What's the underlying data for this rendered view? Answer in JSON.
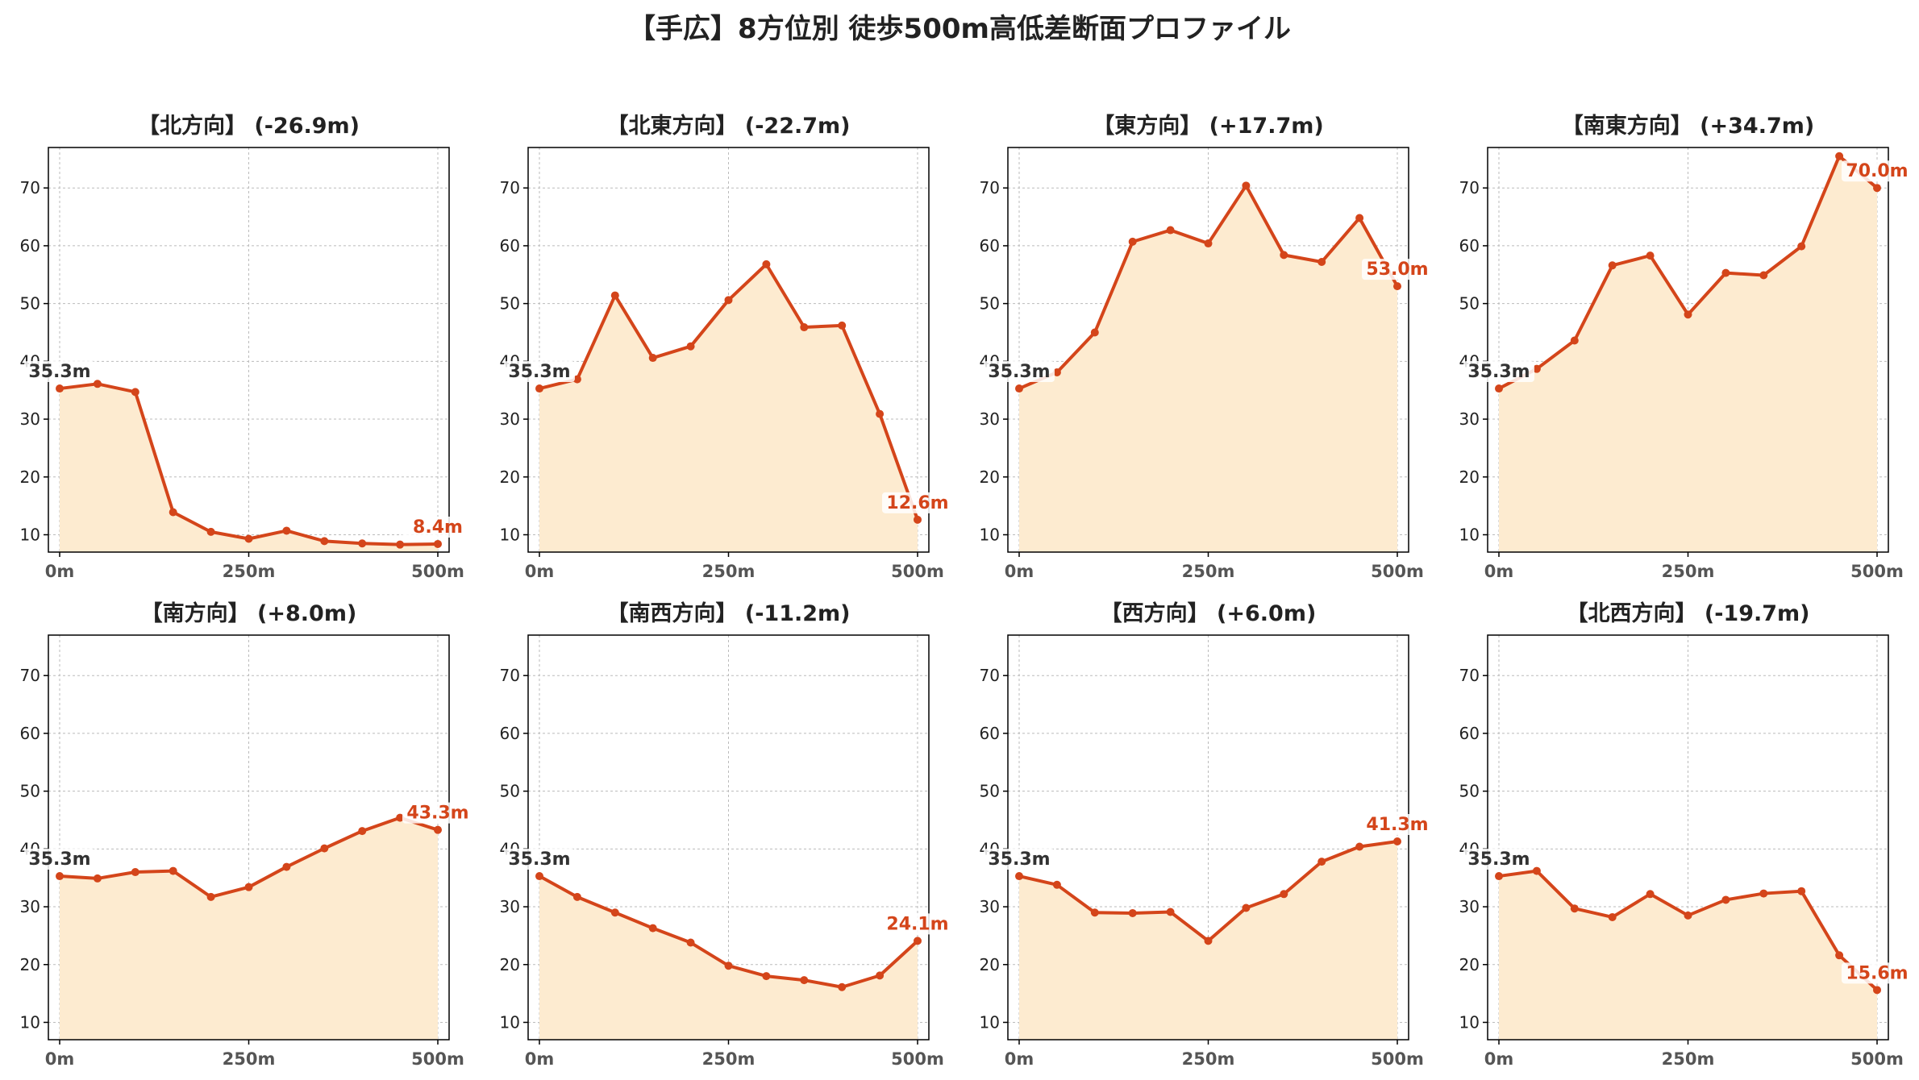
{
  "title": "【手広】8方位別 徒歩500m高低差断面プロファイル",
  "colors": {
    "line": "#D4451A",
    "fill": "#FDEBD0",
    "grid": "#BBBBBB",
    "start_label": "#333333",
    "end_label": "#D4451A"
  },
  "chart_data": [
    {
      "type": "area",
      "title": "【北方向】 (-26.9m)",
      "x": [
        0,
        50,
        100,
        150,
        200,
        250,
        300,
        350,
        400,
        450,
        500
      ],
      "x_ticks": [
        "0m",
        "250m",
        "500m"
      ],
      "y_ticks": [
        10,
        20,
        30,
        40,
        50,
        60,
        70
      ],
      "ylim": [
        7,
        77
      ],
      "values": [
        35.3,
        36.1,
        34.7,
        13.9,
        10.5,
        9.3,
        10.7,
        8.9,
        8.5,
        8.3,
        8.4
      ],
      "start_label": "35.3m",
      "end_label": "8.4m",
      "grid": true
    },
    {
      "type": "area",
      "title": "【北東方向】 (-22.7m)",
      "x": [
        0,
        50,
        100,
        150,
        200,
        250,
        300,
        350,
        400,
        450,
        500
      ],
      "x_ticks": [
        "0m",
        "250m",
        "500m"
      ],
      "y_ticks": [
        10,
        20,
        30,
        40,
        50,
        60,
        70
      ],
      "ylim": [
        7,
        77
      ],
      "values": [
        35.3,
        36.9,
        51.4,
        40.6,
        42.6,
        50.6,
        56.8,
        45.9,
        46.2,
        30.9,
        12.6
      ],
      "start_label": "35.3m",
      "end_label": "12.6m",
      "grid": true
    },
    {
      "type": "area",
      "title": "【東方向】 (+17.7m)",
      "x": [
        0,
        50,
        100,
        150,
        200,
        250,
        300,
        350,
        400,
        450,
        500
      ],
      "x_ticks": [
        "0m",
        "250m",
        "500m"
      ],
      "y_ticks": [
        10,
        20,
        30,
        40,
        50,
        60,
        70
      ],
      "ylim": [
        7,
        77
      ],
      "values": [
        35.3,
        38.1,
        45.0,
        60.7,
        62.7,
        60.4,
        70.4,
        58.4,
        57.2,
        64.8,
        53.0
      ],
      "start_label": "35.3m",
      "end_label": "53.0m",
      "grid": true
    },
    {
      "type": "area",
      "title": "【南東方向】 (+34.7m)",
      "x": [
        0,
        50,
        100,
        150,
        200,
        250,
        300,
        350,
        400,
        450,
        500
      ],
      "x_ticks": [
        "0m",
        "250m",
        "500m"
      ],
      "y_ticks": [
        10,
        20,
        30,
        40,
        50,
        60,
        70
      ],
      "ylim": [
        7,
        77
      ],
      "values": [
        35.3,
        38.7,
        43.6,
        56.6,
        58.3,
        48.1,
        55.3,
        54.9,
        59.9,
        75.5,
        70.0
      ],
      "start_label": "35.3m",
      "end_label": "70.0m",
      "grid": true
    },
    {
      "type": "area",
      "title": "【南方向】 (+8.0m)",
      "x": [
        0,
        50,
        100,
        150,
        200,
        250,
        300,
        350,
        400,
        450,
        500
      ],
      "x_ticks": [
        "0m",
        "250m",
        "500m"
      ],
      "y_ticks": [
        10,
        20,
        30,
        40,
        50,
        60,
        70
      ],
      "ylim": [
        7,
        77
      ],
      "values": [
        35.3,
        34.9,
        36.0,
        36.2,
        31.7,
        33.4,
        36.9,
        40.1,
        43.1,
        45.4,
        43.3
      ],
      "start_label": "35.3m",
      "end_label": "43.3m",
      "grid": true
    },
    {
      "type": "area",
      "title": "【南西方向】 (-11.2m)",
      "x": [
        0,
        50,
        100,
        150,
        200,
        250,
        300,
        350,
        400,
        450,
        500
      ],
      "x_ticks": [
        "0m",
        "250m",
        "500m"
      ],
      "y_ticks": [
        10,
        20,
        30,
        40,
        50,
        60,
        70
      ],
      "ylim": [
        7,
        77
      ],
      "values": [
        35.3,
        31.7,
        29.0,
        26.3,
        23.8,
        19.8,
        18.0,
        17.3,
        16.1,
        18.1,
        24.1
      ],
      "start_label": "35.3m",
      "end_label": "24.1m",
      "grid": true
    },
    {
      "type": "area",
      "title": "【西方向】 (+6.0m)",
      "x": [
        0,
        50,
        100,
        150,
        200,
        250,
        300,
        350,
        400,
        450,
        500
      ],
      "x_ticks": [
        "0m",
        "250m",
        "500m"
      ],
      "y_ticks": [
        10,
        20,
        30,
        40,
        50,
        60,
        70
      ],
      "ylim": [
        7,
        77
      ],
      "values": [
        35.3,
        33.8,
        29.0,
        28.9,
        29.1,
        24.1,
        29.8,
        32.2,
        37.8,
        40.4,
        41.3
      ],
      "start_label": "35.3m",
      "end_label": "41.3m",
      "grid": true
    },
    {
      "type": "area",
      "title": "【北西方向】 (-19.7m)",
      "x": [
        0,
        50,
        100,
        150,
        200,
        250,
        300,
        350,
        400,
        450,
        500
      ],
      "x_ticks": [
        "0m",
        "250m",
        "500m"
      ],
      "y_ticks": [
        10,
        20,
        30,
        40,
        50,
        60,
        70
      ],
      "ylim": [
        7,
        77
      ],
      "values": [
        35.3,
        36.2,
        29.7,
        28.2,
        32.2,
        28.5,
        31.2,
        32.3,
        32.7,
        21.6,
        15.6
      ],
      "start_label": "35.3m",
      "end_label": "15.6m",
      "grid": true
    }
  ]
}
